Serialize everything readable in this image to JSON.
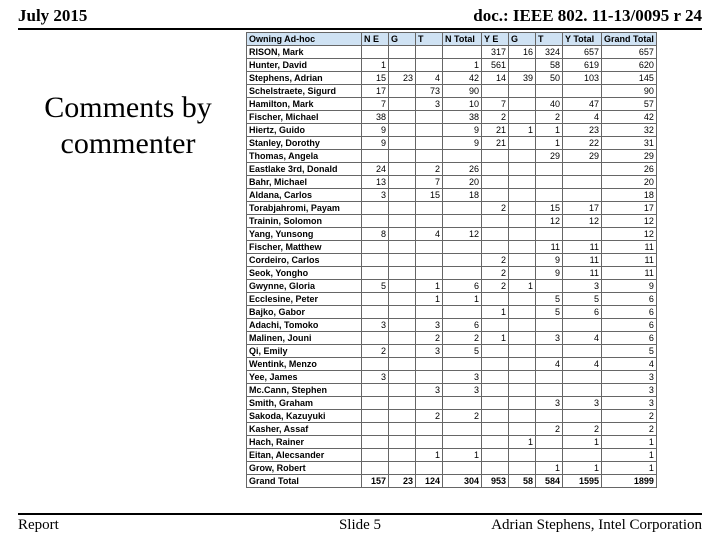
{
  "header": {
    "left": "July 2015",
    "right": "doc.: IEEE 802. 11-13/0095 r 24"
  },
  "footer": {
    "left": "Report",
    "mid": "Slide 5",
    "right": "Adrian Stephens, Intel Corporation"
  },
  "title": "Comments by commenter",
  "columns": [
    "Owning Ad-hoc",
    "N E",
    "G",
    "T",
    "N Total",
    "Y E",
    "G",
    "T",
    "Y Total",
    "Grand Total"
  ],
  "rows": [
    [
      "RISON, Mark",
      "",
      "",
      "",
      "",
      "317",
      "16",
      "324",
      "657",
      "657"
    ],
    [
      "Hunter, David",
      "1",
      "",
      "",
      "1",
      "561",
      "",
      "58",
      "619",
      "620"
    ],
    [
      "Stephens, Adrian",
      "15",
      "23",
      "4",
      "42",
      "14",
      "39",
      "50",
      "103",
      "145"
    ],
    [
      "Schelstraete, Sigurd",
      "17",
      "",
      "73",
      "90",
      "",
      "",
      "",
      "",
      "90"
    ],
    [
      "Hamilton, Mark",
      "7",
      "",
      "3",
      "10",
      "7",
      "",
      "40",
      "47",
      "57"
    ],
    [
      "Fischer, Michael",
      "38",
      "",
      "",
      "38",
      "2",
      "",
      "2",
      "4",
      "42"
    ],
    [
      "Hiertz, Guido",
      "9",
      "",
      "",
      "9",
      "21",
      "1",
      "1",
      "23",
      "32"
    ],
    [
      "Stanley, Dorothy",
      "9",
      "",
      "",
      "9",
      "21",
      "",
      "1",
      "22",
      "31"
    ],
    [
      "Thomas, Angela",
      "",
      "",
      "",
      "",
      "",
      "",
      "29",
      "29",
      "29"
    ],
    [
      "Eastlake 3rd, Donald",
      "24",
      "",
      "2",
      "26",
      "",
      "",
      "",
      "",
      "26"
    ],
    [
      "Bahr, Michael",
      "13",
      "",
      "7",
      "20",
      "",
      "",
      "",
      "",
      "20"
    ],
    [
      "Aldana, Carlos",
      "3",
      "",
      "15",
      "18",
      "",
      "",
      "",
      "",
      "18"
    ],
    [
      "Torabjahromi, Payam",
      "",
      "",
      "",
      "",
      "2",
      "",
      "15",
      "17",
      "17"
    ],
    [
      "Trainin, Solomon",
      "",
      "",
      "",
      "",
      "",
      "",
      "12",
      "12",
      "12"
    ],
    [
      "Yang, Yunsong",
      "8",
      "",
      "4",
      "12",
      "",
      "",
      "",
      "",
      "12"
    ],
    [
      "Fischer, Matthew",
      "",
      "",
      "",
      "",
      "",
      "",
      "11",
      "11",
      "11"
    ],
    [
      "Cordeiro, Carlos",
      "",
      "",
      "",
      "",
      "2",
      "",
      "9",
      "11",
      "11"
    ],
    [
      "Seok, Yongho",
      "",
      "",
      "",
      "",
      "2",
      "",
      "9",
      "11",
      "11"
    ],
    [
      "Gwynne, Gloria",
      "5",
      "",
      "1",
      "6",
      "2",
      "1",
      "",
      "3",
      "9"
    ],
    [
      "Ecclesine, Peter",
      "",
      "",
      "1",
      "1",
      "",
      "",
      "5",
      "5",
      "6"
    ],
    [
      "Bajko, Gabor",
      "",
      "",
      "",
      "",
      "1",
      "",
      "5",
      "6",
      "6"
    ],
    [
      "Adachi, Tomoko",
      "3",
      "",
      "3",
      "6",
      "",
      "",
      "",
      "",
      "6"
    ],
    [
      "Malinen, Jouni",
      "",
      "",
      "2",
      "2",
      "1",
      "",
      "3",
      "4",
      "6"
    ],
    [
      "Qi, Emily",
      "2",
      "",
      "3",
      "5",
      "",
      "",
      "",
      "",
      "5"
    ],
    [
      "Wentink, Menzo",
      "",
      "",
      "",
      "",
      "",
      "",
      "4",
      "4",
      "4"
    ],
    [
      "Yee, James",
      "3",
      "",
      "",
      "3",
      "",
      "",
      "",
      "",
      "3"
    ],
    [
      "Mc.Cann, Stephen",
      "",
      "",
      "3",
      "3",
      "",
      "",
      "",
      "",
      "3"
    ],
    [
      "Smith, Graham",
      "",
      "",
      "",
      "",
      "",
      "",
      "3",
      "3",
      "3"
    ],
    [
      "Sakoda, Kazuyuki",
      "",
      "",
      "2",
      "2",
      "",
      "",
      "",
      "",
      "2"
    ],
    [
      "Kasher, Assaf",
      "",
      "",
      "",
      "",
      "",
      "",
      "2",
      "2",
      "2"
    ],
    [
      "Hach, Rainer",
      "",
      "",
      "",
      "",
      "",
      "1",
      "",
      "1",
      "1"
    ],
    [
      "Eitan, Alecsander",
      "",
      "",
      "1",
      "1",
      "",
      "",
      "",
      "",
      "1"
    ],
    [
      "Grow, Robert",
      "",
      "",
      "",
      "",
      "",
      "",
      "1",
      "1",
      "1"
    ]
  ],
  "grandTotal": [
    "Grand Total",
    "157",
    "23",
    "124",
    "304",
    "953",
    "58",
    "584",
    "1595",
    "1899"
  ]
}
